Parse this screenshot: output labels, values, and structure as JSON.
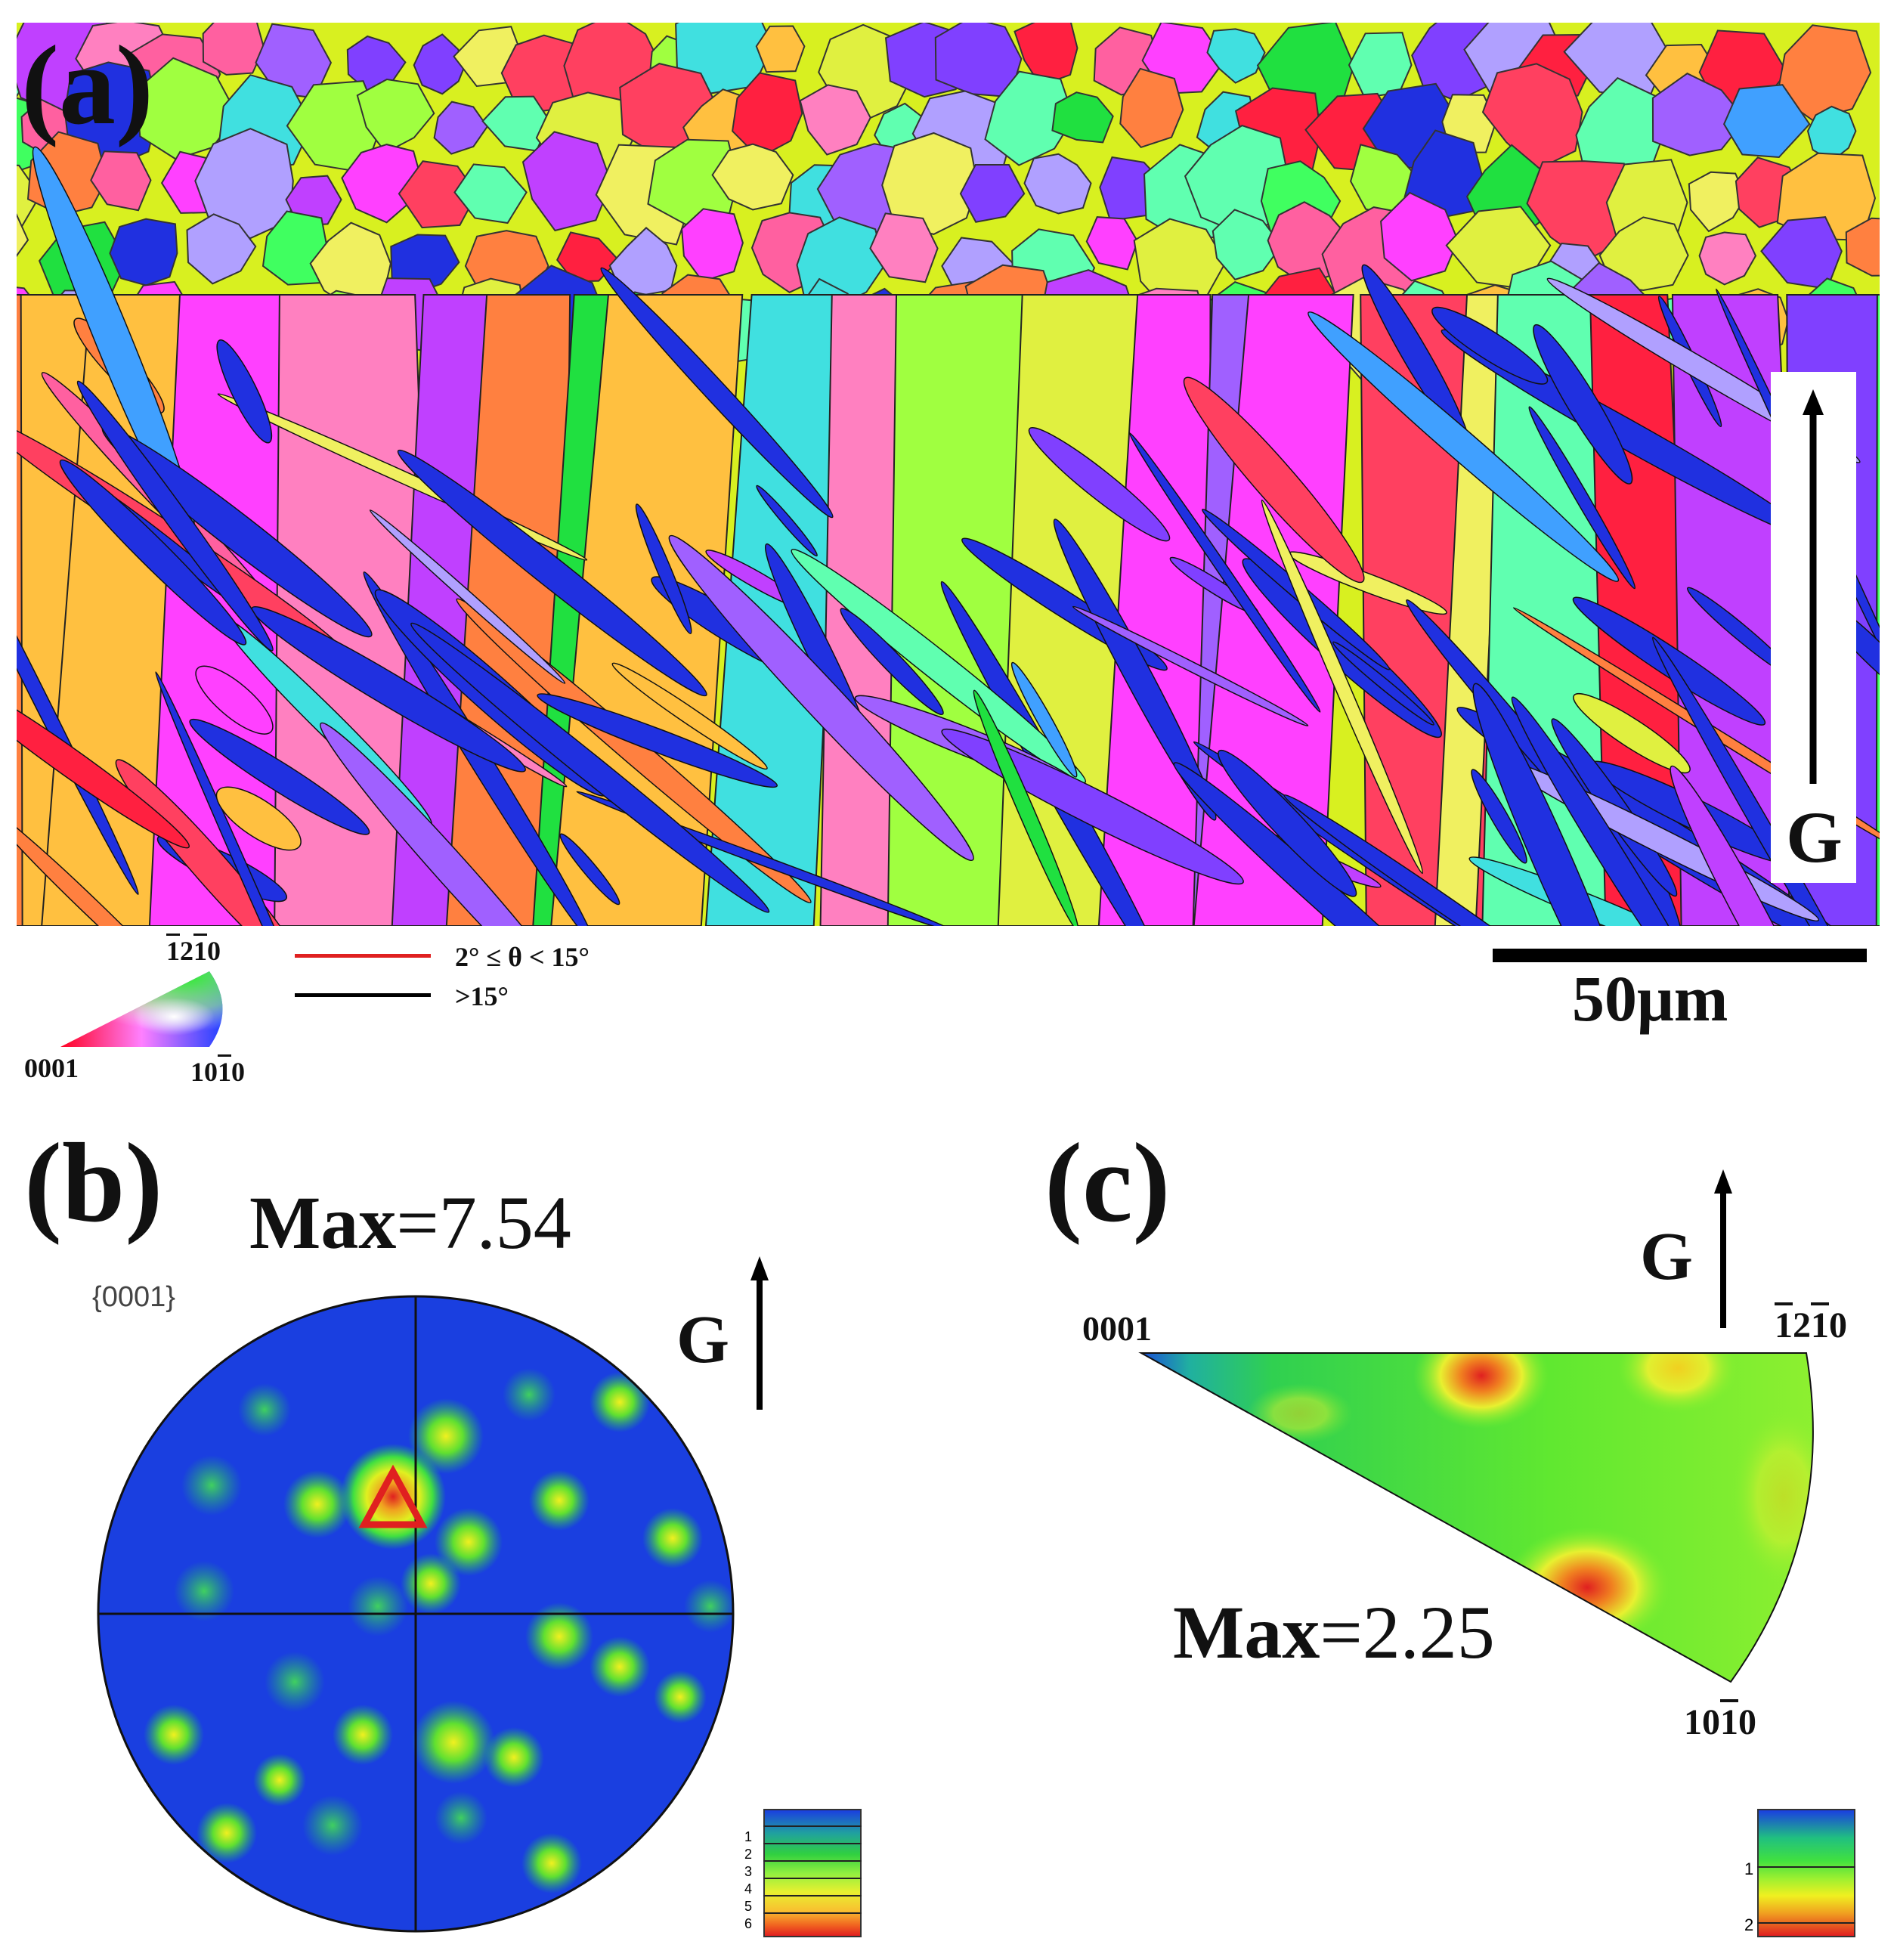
{
  "panel_a": {
    "label": "(a)",
    "growth_direction": "G",
    "scale_bar_label": "50μm",
    "ipf_key": {
      "top_label": [
        "1",
        "2",
        "1",
        "0"
      ],
      "top_label_overline": [
        true,
        false,
        true,
        false
      ],
      "left_label": "0001",
      "right_label": [
        "1",
        "0",
        "1",
        "0"
      ],
      "right_label_overline": [
        false,
        false,
        true,
        false
      ]
    },
    "boundary_legend": [
      {
        "label": "2° ≤ θ < 15°",
        "color": "#e02020"
      },
      {
        "label": ">15°",
        "color": "#000000"
      }
    ]
  },
  "panel_b": {
    "label": "(b)",
    "max_label": "Max",
    "max_value": "=7.54",
    "pole_figure_label": "{0001}",
    "growth_direction": "G",
    "colorbar_ticks": [
      "1",
      "2",
      "3",
      "4",
      "5",
      "6"
    ]
  },
  "panel_c": {
    "label": "(c)",
    "max_label": "Max",
    "max_value": "=2.25",
    "growth_direction": "G",
    "corner_0001": "0001",
    "corner_top": [
      "1",
      "2",
      "1",
      "0"
    ],
    "corner_top_overline": [
      true,
      false,
      true,
      false
    ],
    "corner_bottom": [
      "1",
      "0",
      "1",
      "0"
    ],
    "corner_bottom_overline": [
      false,
      false,
      true,
      false
    ],
    "colorbar_ticks": [
      "1",
      "2"
    ]
  },
  "colors": {
    "ipf_red": "#ff2040",
    "ipf_green": "#20e040",
    "ipf_blue": "#2030e0",
    "pf_background": "#1a3fe0"
  }
}
